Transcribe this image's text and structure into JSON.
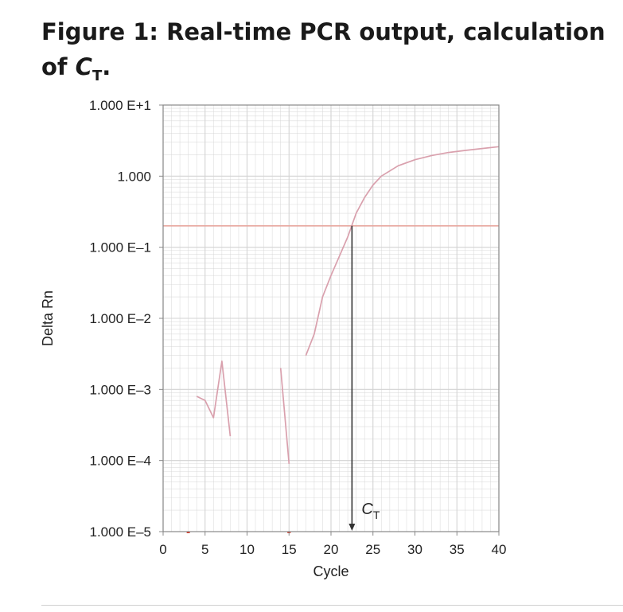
{
  "figure": {
    "title_prefix": "Figure 1: Real-time PCR output, calculation of ",
    "title_symbol": "C",
    "title_symbol_sub": "T",
    "title_suffix": "."
  },
  "chart_data": {
    "type": "line",
    "xlabel": "Cycle",
    "ylabel": "Delta Rn",
    "xlim": [
      0,
      40
    ],
    "ylim": [
      1e-05,
      10
    ],
    "y_scale": "log",
    "grid": true,
    "x_ticks": [
      0,
      5,
      10,
      15,
      20,
      25,
      30,
      35,
      40
    ],
    "x_tick_labels": [
      "0",
      "5",
      "10",
      "15",
      "20",
      "25",
      "30",
      "35",
      "40"
    ],
    "y_ticks": [
      10,
      1,
      0.1,
      0.01,
      0.001,
      0.0001,
      1e-05
    ],
    "y_tick_labels": [
      "1.000 E+1",
      "1.000",
      "1.000 E–1",
      "1.000 E–2",
      "1.000 E–3",
      "1.000 E–4",
      "1.000 E–5"
    ],
    "threshold": 0.2,
    "ct_cycle": 22.5,
    "ct_label": "C",
    "ct_label_sub": "T",
    "series": [
      {
        "values": [
          [
            4,
            0.0008
          ],
          [
            5,
            0.0007
          ],
          [
            6,
            0.0004
          ],
          [
            7,
            0.0025
          ],
          [
            8,
            0.00022
          ]
        ]
      },
      {
        "values": [
          [
            14,
            0.002
          ],
          [
            15,
            9e-05
          ]
        ]
      },
      {
        "values": [
          [
            17,
            0.003
          ],
          [
            18,
            0.006
          ],
          [
            19,
            0.02
          ],
          [
            20,
            0.04
          ],
          [
            21,
            0.075
          ],
          [
            22,
            0.14
          ],
          [
            23,
            0.3
          ],
          [
            24,
            0.5
          ],
          [
            25,
            0.75
          ],
          [
            26,
            1.0
          ],
          [
            28,
            1.4
          ],
          [
            30,
            1.7
          ],
          [
            32,
            1.95
          ],
          [
            34,
            2.15
          ],
          [
            36,
            2.3
          ],
          [
            38,
            2.45
          ],
          [
            40,
            2.6
          ]
        ]
      }
    ],
    "colors": {
      "curve": "#d9a0ad",
      "threshold": "#e8a79f",
      "grid": "#d3d3d3",
      "axis": "#888888",
      "marker": "#d63a2a"
    }
  }
}
